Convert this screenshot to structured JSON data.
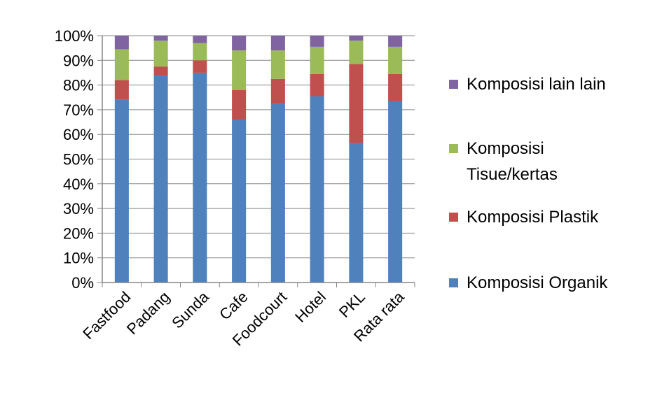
{
  "chart_data": {
    "type": "bar",
    "stacked": true,
    "categories": [
      "Fastfood",
      "Padang",
      "Sunda",
      "Cafe",
      "Foodcourt",
      "Hotel",
      "PKL",
      "Rata rata"
    ],
    "series": [
      {
        "name": "Komposisi Organik",
        "color": "#4F81BD",
        "values": [
          74,
          84,
          85,
          66,
          72.5,
          75.5,
          56.5,
          73.5
        ]
      },
      {
        "name": "Komposisi Plastik",
        "color": "#C0504D",
        "values": [
          8,
          3.5,
          5,
          12,
          10,
          9,
          32,
          11
        ]
      },
      {
        "name": "Komposisi Tisue/kertas",
        "color": "#9BBB59",
        "values": [
          12.5,
          10.5,
          7,
          16,
          11.5,
          11,
          9.5,
          11
        ]
      },
      {
        "name": "Komposisi lain lain",
        "color": "#8064A2",
        "values": [
          5.5,
          2,
          3,
          6,
          6,
          4.5,
          2,
          4.5
        ]
      }
    ],
    "y_ticks": [
      "0%",
      "10%",
      "20%",
      "30%",
      "40%",
      "50%",
      "60%",
      "70%",
      "80%",
      "90%",
      "100%"
    ],
    "ylim": [
      0,
      100
    ],
    "grid": true,
    "legend_position": "right",
    "legend": [
      {
        "label": "Komposisi lain lain",
        "lines": [
          "Komposisi lain lain"
        ],
        "color": "#8064A2"
      },
      {
        "label": "Komposisi Tisue/kertas",
        "lines": [
          "Komposisi",
          "Tisue/kertas"
        ],
        "color": "#9BBB59"
      },
      {
        "label": "Komposisi Plastik",
        "lines": [
          "Komposisi Plastik"
        ],
        "color": "#C0504D"
      },
      {
        "label": "Komposisi Organik",
        "lines": [
          "Komposisi Organik"
        ],
        "color": "#4F81BD"
      }
    ]
  }
}
